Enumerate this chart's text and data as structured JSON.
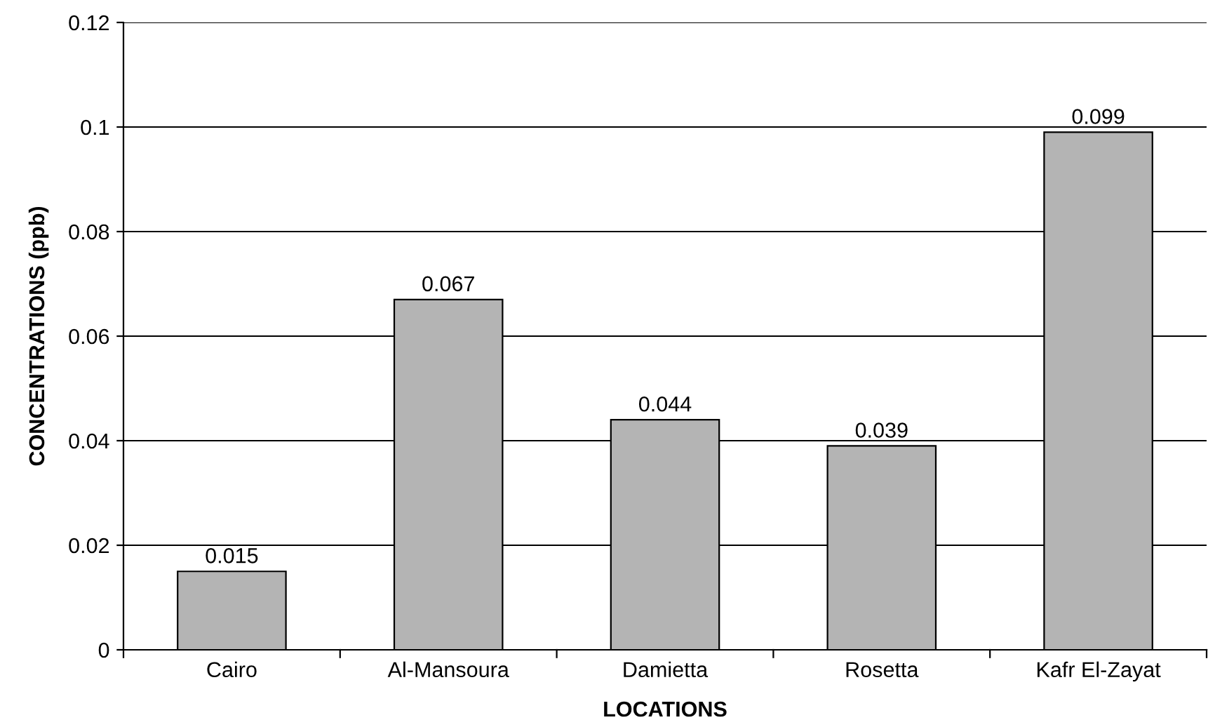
{
  "chart_data": {
    "type": "bar",
    "categories": [
      "Cairo",
      "Al-Mansoura",
      "Damietta",
      "Rosetta",
      "Kafr El-Zayat"
    ],
    "values": [
      0.015,
      0.067,
      0.044,
      0.039,
      0.099
    ],
    "color": "#b4b4b4",
    "xlabel": "LOCATIONS",
    "ylabel": "CONCENTRATIONS (ppb)",
    "ylim": [
      0,
      0.12
    ],
    "yticks": [
      0,
      {
        "value": 0.02,
        "label": "0.02"
      },
      {
        "value": 0.04,
        "label": "0.04"
      },
      {
        "value": 0.06,
        "label": "0.06"
      },
      {
        "value": 0.08,
        "label": "0.08"
      },
      {
        "value": 0.1,
        "label": "0.1"
      },
      {
        "value": 0.12,
        "label": "0.12"
      }
    ],
    "grid": "y",
    "data_labels": true
  }
}
